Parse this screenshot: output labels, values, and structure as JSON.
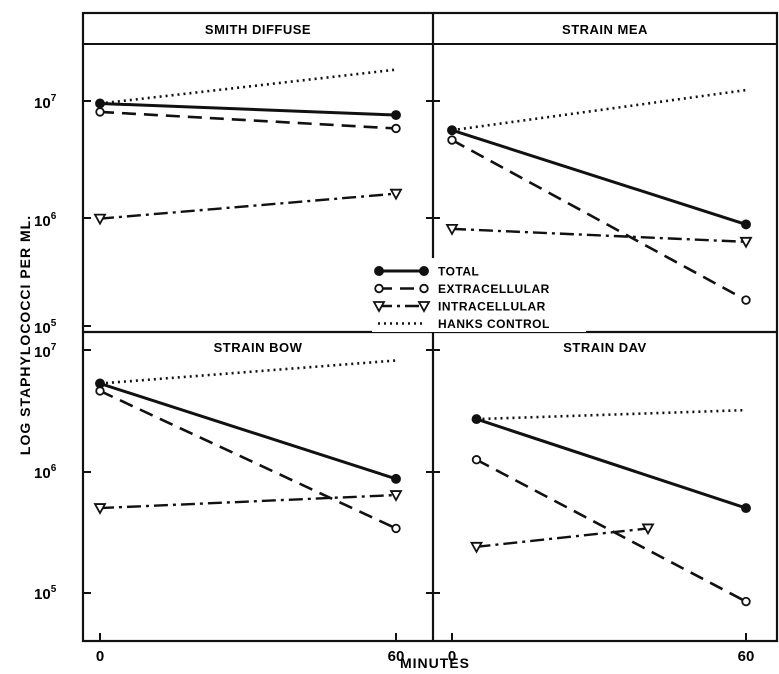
{
  "chart_data": {
    "type": "line",
    "ylabel": "LOG STAPHYLOCOCCI PER ML.",
    "xlabel": "MINUTES",
    "y_scale": "log",
    "ylim": [
      100000,
      25000000
    ],
    "x_ticks": [
      "0",
      "60"
    ],
    "y_ticks": [
      {
        "base": "10",
        "exp": "7"
      },
      {
        "base": "10",
        "exp": "6"
      },
      {
        "base": "10",
        "exp": "5"
      }
    ],
    "legend": {
      "placement": "center",
      "entries": [
        {
          "label": "TOTAL",
          "style": "solid",
          "marker": "filled-circle"
        },
        {
          "label": "EXTRACELLULAR",
          "style": "dashed",
          "marker": "open-circle"
        },
        {
          "label": "INTRACELLULAR",
          "style": "dashdot",
          "marker": "open-triangle"
        },
        {
          "label": "HANKS CONTROL",
          "style": "dotted",
          "marker": "none"
        }
      ]
    },
    "panels": [
      {
        "title": "SMITH DIFFUSE",
        "series": [
          {
            "label": "TOTAL",
            "x": [
              0,
              60
            ],
            "y": [
              9500000,
              7500000
            ]
          },
          {
            "label": "EXTRACELLULAR",
            "x": [
              0,
              60
            ],
            "y": [
              8000000,
              5700000
            ]
          },
          {
            "label": "INTRACELLULAR",
            "x": [
              0,
              60
            ],
            "y": [
              900000,
              1500000
            ]
          },
          {
            "label": "HANKS CONTROL",
            "x": [
              0,
              60
            ],
            "y": [
              9500000,
              19000000
            ]
          }
        ]
      },
      {
        "title": "STRAIN MEA",
        "series": [
          {
            "label": "TOTAL",
            "x": [
              0,
              60
            ],
            "y": [
              5500000,
              800000
            ]
          },
          {
            "label": "EXTRACELLULAR",
            "x": [
              0,
              60
            ],
            "y": [
              4500000,
              170000
            ]
          },
          {
            "label": "INTRACELLULAR",
            "x": [
              0,
              60
            ],
            "y": [
              730000,
              560000
            ]
          },
          {
            "label": "HANKS CONTROL",
            "x": [
              0,
              60
            ],
            "y": [
              5500000,
              12500000
            ]
          }
        ]
      },
      {
        "title": "STRAIN BOW",
        "series": [
          {
            "label": "TOTAL",
            "x": [
              0,
              60
            ],
            "y": [
              5300000,
              870000
            ]
          },
          {
            "label": "EXTRACELLULAR",
            "x": [
              0,
              60
            ],
            "y": [
              4600000,
              340000
            ]
          },
          {
            "label": "INTRACELLULAR",
            "x": [
              0,
              60
            ],
            "y": [
              500000,
              640000
            ]
          },
          {
            "label": "HANKS CONTROL",
            "x": [
              0,
              60
            ],
            "y": [
              5300000,
              8200000
            ]
          }
        ]
      },
      {
        "title": "STRAIN DAV",
        "series": [
          {
            "label": "TOTAL",
            "x": [
              5,
              60
            ],
            "y": [
              2700000,
              500000
            ]
          },
          {
            "label": "EXTRACELLULAR",
            "x": [
              5,
              60
            ],
            "y": [
              1250000,
              85000
            ]
          },
          {
            "label": "INTRACELLULAR",
            "x": [
              5,
              40
            ],
            "y": [
              240000,
              340000
            ]
          },
          {
            "label": "HANKS CONTROL",
            "x": [
              5,
              60
            ],
            "y": [
              2700000,
              3200000
            ]
          }
        ]
      }
    ]
  }
}
